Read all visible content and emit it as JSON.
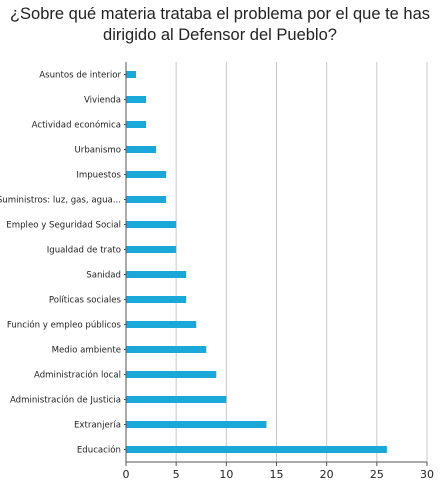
{
  "chart_data": {
    "type": "bar",
    "orientation": "horizontal",
    "title_lines": [
      "¿Sobre qué materia trataba el problema por el que te has",
      "dirigido al Defensor del Pueblo?"
    ],
    "categories": [
      "Asuntos de interior",
      "Vivienda",
      "Actividad económica",
      "Urbanismo",
      "Impuestos",
      "Suministros: luz, gas, agua...",
      "Empleo y Seguridad Social",
      "Igualdad de trato",
      "Sanidad",
      "Políticas sociales",
      "Función y empleo públicos",
      "Medio ambiente",
      "Administración local",
      "Administración de Justicia",
      "Extranjería",
      "Educación"
    ],
    "values": [
      1,
      2,
      2,
      3,
      4,
      4,
      5,
      5,
      6,
      6,
      7,
      8,
      9,
      10,
      14,
      26
    ],
    "xlim": [
      0,
      30
    ],
    "xticks": [
      "0",
      "5",
      "10",
      "15",
      "20",
      "25",
      "30"
    ],
    "grid": "vertical",
    "bar_color": "#1aa8d8",
    "grid_color": "#c8c8c8",
    "axis_color": "#555555"
  }
}
